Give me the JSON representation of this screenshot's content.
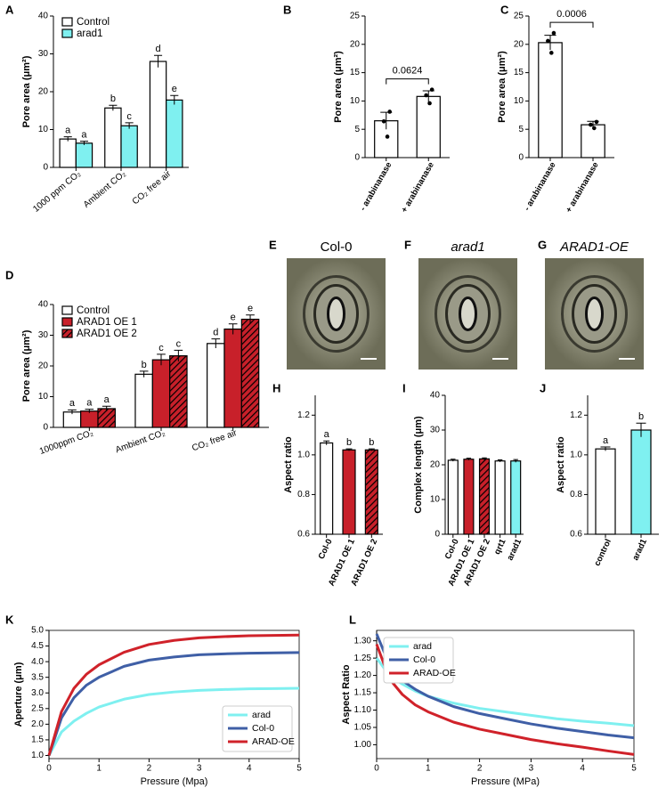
{
  "chart_data": [
    {
      "type": "bar",
      "panel": "A",
      "ylabel": "Pore area (μm²)",
      "categories": [
        "1000 ppm CO₂",
        "Ambient CO₂",
        "CO₂ free air"
      ],
      "series": [
        {
          "name": "Control",
          "color": "#ffffff",
          "values": [
            7.5,
            15.7,
            28
          ],
          "errors": [
            0.6,
            0.7,
            1.6
          ],
          "letters": [
            "a",
            "b",
            "d"
          ]
        },
        {
          "name": "arad1",
          "color": "#7ff0f0",
          "values": [
            6.4,
            11,
            17.8
          ],
          "errors": [
            0.5,
            0.8,
            1.2
          ],
          "letters": [
            "a",
            "c",
            "e"
          ]
        }
      ],
      "ylim": [
        0,
        40
      ],
      "yticks": [
        0,
        10,
        20,
        30,
        40
      ],
      "legend": "upper left"
    },
    {
      "type": "bar",
      "panel": "B",
      "ylabel": "Pore area (μm²)",
      "categories": [
        "- arabinanase",
        "+ arabinanase"
      ],
      "values": [
        6.5,
        10.8
      ],
      "errors": [
        1.5,
        1.0
      ],
      "colors": [
        "#ffffff",
        "#ffffff"
      ],
      "points": [
        [
          8.1,
          6.4,
          3.7
        ],
        [
          12,
          11,
          9.6
        ]
      ],
      "annotation": "0.0624",
      "ylim": [
        0,
        25
      ],
      "yticks": [
        0,
        5,
        10,
        15,
        20,
        25
      ]
    },
    {
      "type": "bar",
      "panel": "C",
      "ylabel": "Pore area (μm²)",
      "categories": [
        "- arabinanase",
        "+ arabinanase"
      ],
      "values": [
        20.3,
        5.8
      ],
      "errors": [
        1.3,
        0.6
      ],
      "colors": [
        "#ffffff",
        "#ffffff"
      ],
      "points": [
        [
          22,
          20.6,
          18.5
        ],
        [
          6.3,
          5.8,
          5.2
        ]
      ],
      "annotation": "0.0006",
      "ylim": [
        0,
        25
      ],
      "yticks": [
        0,
        5,
        10,
        15,
        20,
        25
      ]
    },
    {
      "type": "bar",
      "panel": "D",
      "ylabel": "Pore area (μm²)",
      "categories": [
        "1000ppm CO₂",
        "Ambient CO₂",
        "CO₂ free air"
      ],
      "series": [
        {
          "name": "Control",
          "color": "#ffffff",
          "values": [
            5,
            17.3,
            27.3
          ],
          "errors": [
            0.7,
            1,
            1.5
          ],
          "letters": [
            "a",
            "b",
            "d"
          ]
        },
        {
          "name": "ARAD1 OE 1",
          "color": "#c8202a",
          "values": [
            5.3,
            22,
            32
          ],
          "errors": [
            0.6,
            1.8,
            1.7
          ],
          "letters": [
            "a",
            "c",
            "e"
          ]
        },
        {
          "name": "ARAD1 OE 2",
          "color": "#c8202a",
          "hatched": true,
          "values": [
            6.1,
            23.3,
            35.2
          ],
          "errors": [
            0.8,
            1.8,
            1.4
          ],
          "letters": [
            "a",
            "c",
            "e"
          ]
        }
      ],
      "ylim": [
        0,
        40
      ],
      "yticks": [
        0,
        10,
        20,
        30,
        40
      ],
      "legend": "upper left"
    },
    {
      "type": "image",
      "panel": "E",
      "title": "Col-0"
    },
    {
      "type": "image",
      "panel": "F",
      "title": "arad1"
    },
    {
      "type": "image",
      "panel": "G",
      "title": "ARAD1-OE"
    },
    {
      "type": "bar",
      "panel": "H",
      "ylabel": "Aspect ratio",
      "categories": [
        "Col-0",
        "ARAD1 OE 1",
        "ARAD1 OE 2"
      ],
      "values": [
        1.06,
        1.025,
        1.025
      ],
      "errors": [
        0.01,
        0.005,
        0.005
      ],
      "colors": [
        "#ffffff",
        "#c8202a",
        "#c8202a"
      ],
      "hatched": [
        false,
        false,
        true
      ],
      "letters": [
        "a",
        "b",
        "b"
      ],
      "ylim": [
        0.6,
        1.3
      ],
      "yticks": [
        0.6,
        0.8,
        {
          "value": 1.0,
          "label": "1.0"
        },
        1.2
      ]
    },
    {
      "type": "bar",
      "panel": "I",
      "ylabel": "Complex length (μm)",
      "categories": [
        "Col-0",
        "ARAD1 OE 1",
        "ARAD1 OE 2",
        "qrt1",
        "arad1"
      ],
      "values": [
        21.3,
        21.6,
        21.7,
        21.1,
        21.1
      ],
      "errors": [
        0.3,
        0.3,
        0.3,
        0.3,
        0.4
      ],
      "colors": [
        "#ffffff",
        "#c8202a",
        "#c8202a",
        "#ffffff",
        "#7ff0f0"
      ],
      "hatched": [
        false,
        false,
        true,
        false,
        false
      ],
      "ylim": [
        0,
        40
      ],
      "yticks": [
        0,
        10,
        20,
        30,
        40
      ]
    },
    {
      "type": "bar",
      "panel": "J",
      "ylabel": "Aspect ratio",
      "categories": [
        "control",
        "arad1"
      ],
      "values": [
        1.03,
        1.125
      ],
      "errors": [
        0.01,
        0.035
      ],
      "colors": [
        "#ffffff",
        "#7ff0f0"
      ],
      "letters": [
        "a",
        "b"
      ],
      "ylim": [
        0.6,
        1.3
      ],
      "yticks": [
        0.6,
        0.8,
        {
          "value": 1.0,
          "label": "1.0"
        },
        1.2
      ]
    },
    {
      "type": "line",
      "panel": "K",
      "xlabel": "Pressure (Mpa)",
      "ylabel": "Aperture (μm)",
      "x": [
        0,
        0.25,
        0.5,
        0.75,
        1,
        1.5,
        2,
        2.5,
        3,
        3.5,
        4,
        4.5,
        5
      ],
      "series": [
        {
          "name": "arad",
          "color": "#7ff0f0",
          "values": [
            1.0,
            1.75,
            2.1,
            2.35,
            2.55,
            2.8,
            2.95,
            3.03,
            3.08,
            3.11,
            3.13,
            3.14,
            3.15
          ]
        },
        {
          "name": "Col-0",
          "color": "#3f5fa6",
          "values": [
            1.0,
            2.2,
            2.85,
            3.25,
            3.5,
            3.85,
            4.05,
            4.15,
            4.22,
            4.25,
            4.27,
            4.28,
            4.29
          ]
        },
        {
          "name": "ARAD-OE",
          "color": "#d0222a",
          "values": [
            1.0,
            2.4,
            3.15,
            3.6,
            3.9,
            4.3,
            4.55,
            4.68,
            4.76,
            4.8,
            4.83,
            4.84,
            4.85
          ]
        }
      ],
      "xlim": [
        0,
        5
      ],
      "xticks": [
        0,
        1,
        2,
        3,
        4,
        5
      ],
      "ylim": [
        0.9,
        5.0
      ],
      "yticks": [
        {
          "value": 1.0,
          "label": "1.0"
        },
        1.5,
        {
          "value": 2.0,
          "label": "2.0"
        },
        2.5,
        {
          "value": 3.0,
          "label": "3.0"
        },
        3.5,
        {
          "value": 4.0,
          "label": "4.0"
        },
        4.5,
        {
          "value": 5.0,
          "label": "5.0"
        }
      ],
      "legend": "lower right"
    },
    {
      "type": "line",
      "panel": "L",
      "xlabel": "Pressure (MPa)",
      "ylabel": "Aspect Ratio",
      "x": [
        0,
        0.25,
        0.5,
        0.75,
        1,
        1.5,
        2,
        2.5,
        3,
        3.5,
        4,
        4.5,
        5
      ],
      "series": [
        {
          "name": "arad",
          "color": "#7ff0f0",
          "values": [
            1.25,
            1.2,
            1.175,
            1.155,
            1.14,
            1.12,
            1.105,
            1.095,
            1.085,
            1.075,
            1.068,
            1.062,
            1.055
          ]
        },
        {
          "name": "Col-0",
          "color": "#3f5fa6",
          "values": [
            1.32,
            1.23,
            1.185,
            1.16,
            1.14,
            1.11,
            1.09,
            1.075,
            1.06,
            1.048,
            1.038,
            1.028,
            1.02
          ]
        },
        {
          "name": "ARAD-OE",
          "color": "#d0222a",
          "values": [
            1.29,
            1.19,
            1.145,
            1.115,
            1.095,
            1.065,
            1.045,
            1.03,
            1.015,
            1.003,
            0.993,
            0.982,
            0.972
          ]
        }
      ],
      "xlim": [
        0,
        5
      ],
      "xticks": [
        0,
        1,
        2,
        3,
        4,
        5
      ],
      "ylim": [
        0.96,
        1.33
      ],
      "yticks": [
        {
          "value": 1.0,
          "label": "1.00"
        },
        1.05,
        {
          "value": 1.1,
          "label": "1.10"
        },
        1.15,
        {
          "value": 1.2,
          "label": "1.20"
        },
        1.25,
        {
          "value": 1.3,
          "label": "1.30"
        }
      ],
      "legend": "upper left"
    }
  ]
}
